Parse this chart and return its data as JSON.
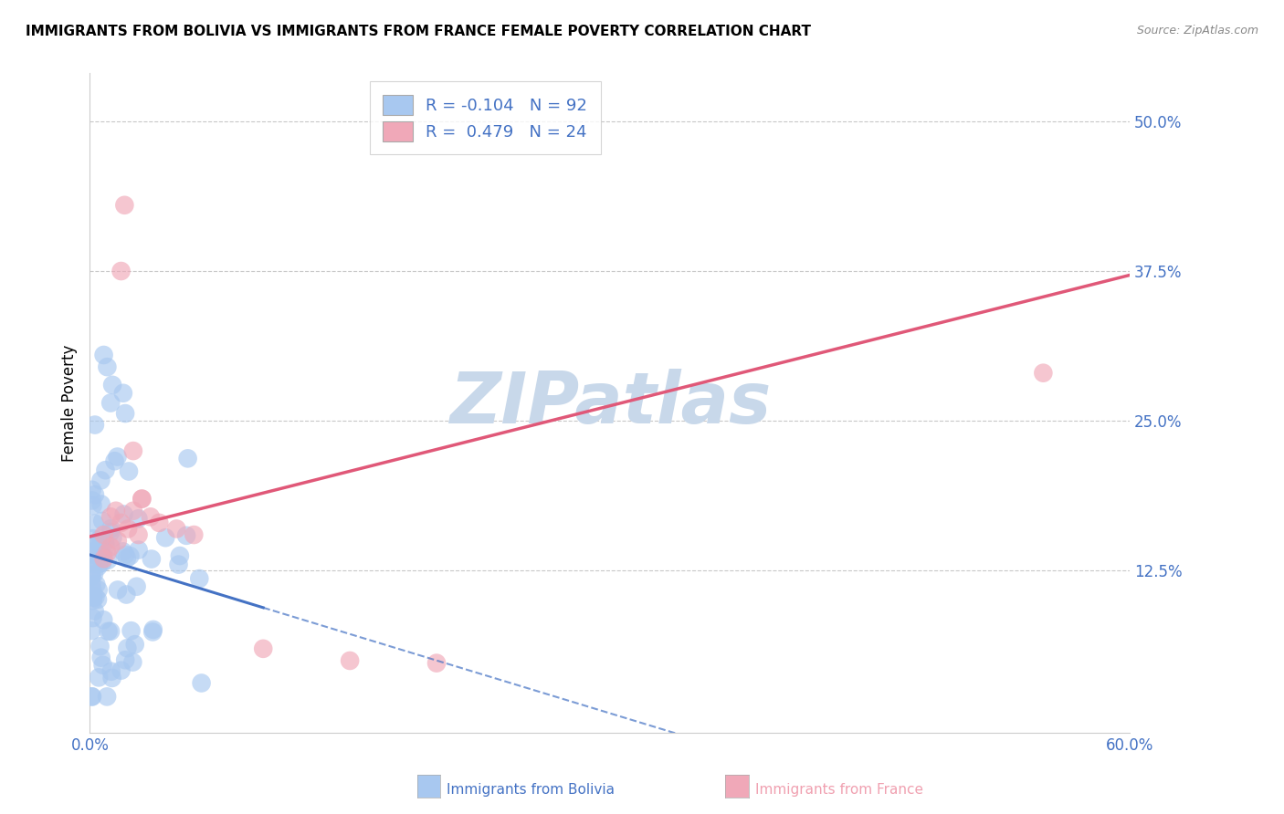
{
  "title": "IMMIGRANTS FROM BOLIVIA VS IMMIGRANTS FROM FRANCE FEMALE POVERTY CORRELATION CHART",
  "source": "Source: ZipAtlas.com",
  "xlabel_bolivia": "Immigrants from Bolivia",
  "xlabel_france": "Immigrants from France",
  "ylabel": "Female Poverty",
  "xlim": [
    0.0,
    0.6
  ],
  "ylim": [
    -0.01,
    0.54
  ],
  "ytick_positions": [
    0.125,
    0.25,
    0.375,
    0.5
  ],
  "ytick_labels": [
    "12.5%",
    "25.0%",
    "37.5%",
    "50.0%"
  ],
  "bolivia_R": -0.104,
  "bolivia_N": 92,
  "france_R": 0.479,
  "france_N": 24,
  "bolivia_color": "#a8c8f0",
  "france_color": "#f0a8b8",
  "bolivia_line_color": "#4472c4",
  "france_line_color": "#e05878",
  "bolivia_dot_alpha": 0.65,
  "france_dot_alpha": 0.65,
  "watermark": "ZIPatlas",
  "watermark_color": "#c8d8ea",
  "grid_color": "#c8c8c8",
  "bolivia_seed": 42,
  "france_seed": 99
}
